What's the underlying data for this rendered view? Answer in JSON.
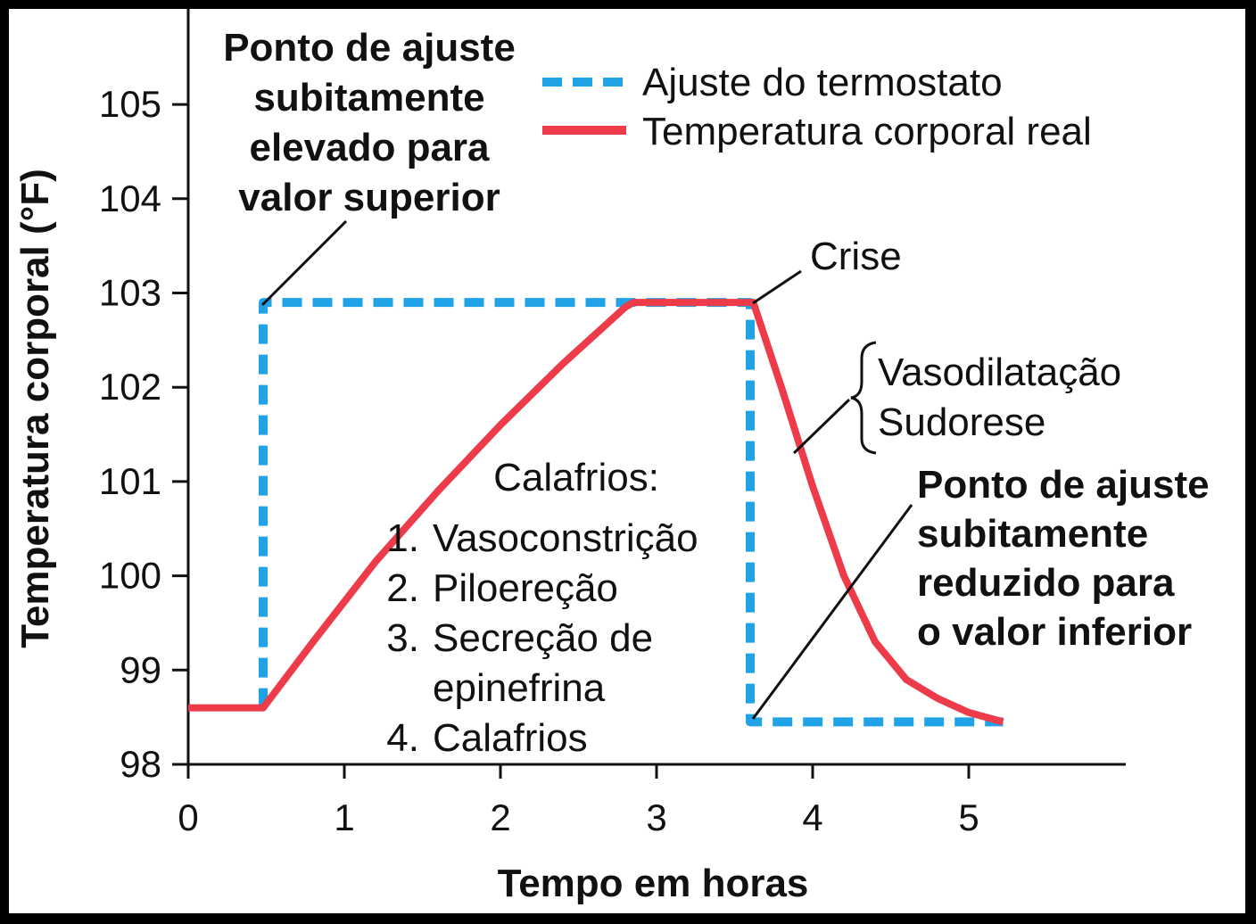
{
  "chart_data": {
    "type": "line",
    "title": "",
    "xlabel": "Tempo em horas",
    "ylabel": "Temperatura corporal (°F)",
    "xlim": [
      0,
      6
    ],
    "ylim": [
      98,
      105.8
    ],
    "x_ticks": [
      0,
      1,
      2,
      3,
      4,
      5
    ],
    "y_ticks": [
      98,
      99,
      100,
      101,
      102,
      103,
      104,
      105
    ],
    "grid": false,
    "legend_position": "top-right",
    "series": [
      {
        "name": "Ajuste do termostato",
        "style": "dashed",
        "color": "#1fa3e6",
        "points": [
          [
            0.48,
            98.6
          ],
          [
            0.48,
            102.9
          ],
          [
            3.6,
            102.9
          ],
          [
            3.6,
            98.45
          ],
          [
            5.22,
            98.45
          ]
        ]
      },
      {
        "name": "Temperatura corporal real",
        "style": "solid",
        "color": "#ee3b4a",
        "points": [
          [
            0,
            98.6
          ],
          [
            0.48,
            98.6
          ],
          [
            0.8,
            99.3
          ],
          [
            1.2,
            100.15
          ],
          [
            1.6,
            100.9
          ],
          [
            2.0,
            101.6
          ],
          [
            2.4,
            102.25
          ],
          [
            2.8,
            102.85
          ],
          [
            2.85,
            102.9
          ],
          [
            3.62,
            102.9
          ],
          [
            3.8,
            102.0
          ],
          [
            4.0,
            100.95
          ],
          [
            4.2,
            100.0
          ],
          [
            4.4,
            99.3
          ],
          [
            4.6,
            98.9
          ],
          [
            4.8,
            98.7
          ],
          [
            5.0,
            98.55
          ],
          [
            5.22,
            98.45
          ]
        ]
      }
    ]
  },
  "annotations": {
    "setpoint_up": [
      "Ponto de ajuste",
      "subitamente",
      "elevado para",
      "valor superior"
    ],
    "crisis": "Crise",
    "heat_loss": [
      "Vasodilatação",
      "Sudorese"
    ],
    "setpoint_down": [
      "Ponto de ajuste",
      "subitamente",
      "reduzido para",
      "o valor inferior"
    ],
    "chills_title": "Calafrios:",
    "chills_items": [
      {
        "num": "1.",
        "text": "Vasoconstrição"
      },
      {
        "num": "2.",
        "text": "Piloereção"
      },
      {
        "num": "3.",
        "text": "Secreção de"
      },
      {
        "num": "",
        "text": "epinefrina"
      },
      {
        "num": "4.",
        "text": "Calafrios"
      }
    ]
  }
}
